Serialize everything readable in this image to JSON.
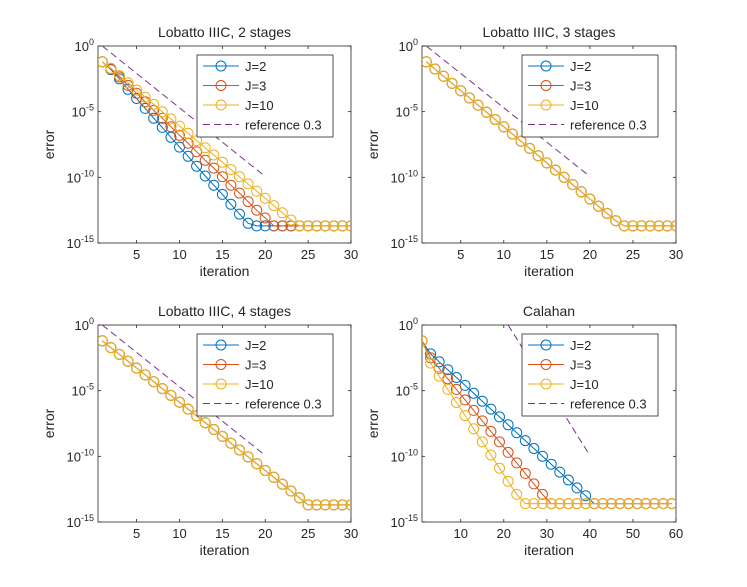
{
  "chart_data": [
    {
      "type": "line",
      "title": "Lobatto IIIC, 2 stages",
      "xlabel": "iteration",
      "ylabel": "error",
      "xlim": [
        0.5,
        30
      ],
      "ylim_exp": [
        -15,
        0
      ],
      "xticks": [
        5,
        10,
        15,
        20,
        25,
        30
      ],
      "yticks": [
        {
          "base": "10",
          "exp": "0",
          "v": 0
        },
        {
          "base": "10",
          "exp": "-5",
          "v": -5
        },
        {
          "base": "10",
          "exp": "-10",
          "v": -10
        },
        {
          "base": "10",
          "exp": "-15",
          "v": -15
        }
      ],
      "legend": [
        "J=2",
        "J=3",
        "J=10",
        "reference 0.3"
      ],
      "legend_position": "top-right",
      "series": [
        {
          "name": "J=2",
          "x0": 1,
          "dx": 1,
          "log10y": [
            -1.2,
            -1.8,
            -2.5,
            -3.3,
            -4.0,
            -4.75,
            -5.5,
            -6.2,
            -6.95,
            -7.7,
            -8.4,
            -9.15,
            -9.9,
            -10.6,
            -11.3,
            -12.05,
            -12.8,
            -13.5,
            -13.7,
            -13.7,
            -13.7,
            -13.7,
            -13.7,
            -13.7,
            -13.7,
            -13.7,
            -13.7,
            -13.7,
            -13.7,
            -13.7
          ]
        },
        {
          "name": "J=3",
          "x0": 1,
          "dx": 1,
          "log10y": [
            -1.2,
            -1.75,
            -2.35,
            -3.0,
            -3.6,
            -4.25,
            -4.9,
            -5.5,
            -6.15,
            -6.8,
            -7.4,
            -8.05,
            -8.7,
            -9.3,
            -9.95,
            -10.6,
            -11.2,
            -11.85,
            -12.5,
            -13.1,
            -13.7,
            -13.7,
            -13.7,
            -13.7,
            -13.7,
            -13.7,
            -13.7,
            -13.7,
            -13.7,
            -13.7
          ]
        },
        {
          "name": "J=10",
          "x0": 1,
          "dx": 1,
          "log10y": [
            -1.2,
            -1.7,
            -2.25,
            -2.8,
            -3.35,
            -3.9,
            -4.45,
            -5.0,
            -5.55,
            -6.1,
            -6.65,
            -7.2,
            -7.75,
            -8.3,
            -8.85,
            -9.4,
            -9.95,
            -10.5,
            -11.05,
            -11.6,
            -12.15,
            -12.7,
            -13.25,
            -13.7,
            -13.7,
            -13.7,
            -13.7,
            -13.7,
            -13.7,
            -13.7
          ]
        },
        {
          "name": "reference 0.3",
          "dashed": true,
          "x0": 1,
          "dx": 1,
          "log10y": [
            0,
            -0.523,
            -1.046,
            -1.569,
            -2.092,
            -2.615,
            -3.138,
            -3.661,
            -4.184,
            -4.707,
            -5.229,
            -5.752,
            -6.275,
            -6.798,
            -7.321,
            -7.844,
            -8.367,
            -8.89,
            -9.413,
            -9.936
          ]
        }
      ]
    },
    {
      "type": "line",
      "title": "Lobatto IIIC, 3 stages",
      "xlabel": "iteration",
      "ylabel": "error",
      "xlim": [
        0.5,
        30
      ],
      "ylim_exp": [
        -15,
        0
      ],
      "xticks": [
        5,
        10,
        15,
        20,
        25,
        30
      ],
      "yticks": [
        {
          "base": "10",
          "exp": "0",
          "v": 0
        },
        {
          "base": "10",
          "exp": "-5",
          "v": -5
        },
        {
          "base": "10",
          "exp": "-10",
          "v": -10
        },
        {
          "base": "10",
          "exp": "-15",
          "v": -15
        }
      ],
      "legend": [
        "J=2",
        "J=3",
        "J=10",
        "reference 0.3"
      ],
      "legend_position": "top-right",
      "series": [
        {
          "name": "J=2",
          "x0": 1,
          "dx": 1,
          "log10y": [
            -1.2,
            -1.75,
            -2.3,
            -2.85,
            -3.4,
            -3.95,
            -4.5,
            -5.05,
            -5.6,
            -6.15,
            -6.7,
            -7.25,
            -7.8,
            -8.35,
            -8.9,
            -9.45,
            -10.0,
            -10.55,
            -11.1,
            -11.65,
            -12.2,
            -12.75,
            -13.3,
            -13.7,
            -13.7,
            -13.7,
            -13.7,
            -13.7,
            -13.7,
            -13.7
          ]
        },
        {
          "name": "J=3",
          "x0": 1,
          "dx": 1,
          "log10y": [
            -1.2,
            -1.75,
            -2.3,
            -2.85,
            -3.4,
            -3.95,
            -4.5,
            -5.05,
            -5.6,
            -6.15,
            -6.7,
            -7.25,
            -7.8,
            -8.35,
            -8.9,
            -9.45,
            -10.0,
            -10.55,
            -11.1,
            -11.65,
            -12.2,
            -12.75,
            -13.3,
            -13.7,
            -13.7,
            -13.7,
            -13.7,
            -13.7,
            -13.7,
            -13.7
          ]
        },
        {
          "name": "J=10",
          "x0": 1,
          "dx": 1,
          "log10y": [
            -1.2,
            -1.75,
            -2.3,
            -2.85,
            -3.4,
            -3.95,
            -4.5,
            -5.05,
            -5.6,
            -6.15,
            -6.7,
            -7.25,
            -7.8,
            -8.35,
            -8.9,
            -9.45,
            -10.0,
            -10.55,
            -11.1,
            -11.65,
            -12.2,
            -12.75,
            -13.3,
            -13.7,
            -13.7,
            -13.7,
            -13.7,
            -13.7,
            -13.7,
            -13.7
          ]
        },
        {
          "name": "reference 0.3",
          "dashed": true,
          "x0": 1,
          "dx": 1,
          "log10y": [
            0,
            -0.523,
            -1.046,
            -1.569,
            -2.092,
            -2.615,
            -3.138,
            -3.661,
            -4.184,
            -4.707,
            -5.229,
            -5.752,
            -6.275,
            -6.798,
            -7.321,
            -7.844,
            -8.367,
            -8.89,
            -9.413,
            -9.936
          ]
        }
      ]
    },
    {
      "type": "line",
      "title": "Lobatto IIIC, 4 stages",
      "xlabel": "iteration",
      "ylabel": "error",
      "xlim": [
        0.5,
        30
      ],
      "ylim_exp": [
        -15,
        0
      ],
      "xticks": [
        5,
        10,
        15,
        20,
        25,
        30
      ],
      "yticks": [
        {
          "base": "10",
          "exp": "0",
          "v": 0
        },
        {
          "base": "10",
          "exp": "-5",
          "v": -5
        },
        {
          "base": "10",
          "exp": "-10",
          "v": -10
        },
        {
          "base": "10",
          "exp": "-15",
          "v": -15
        }
      ],
      "legend": [
        "J=2",
        "J=3",
        "J=10",
        "reference 0.3"
      ],
      "legend_position": "top-right",
      "series": [
        {
          "name": "J=2",
          "x0": 1,
          "dx": 1,
          "log10y": [
            -1.2,
            -1.72,
            -2.24,
            -2.76,
            -3.28,
            -3.8,
            -4.32,
            -4.84,
            -5.36,
            -5.88,
            -6.4,
            -6.92,
            -7.44,
            -7.96,
            -8.48,
            -9.0,
            -9.52,
            -10.04,
            -10.56,
            -11.08,
            -11.6,
            -12.12,
            -12.64,
            -13.16,
            -13.7,
            -13.7,
            -13.7,
            -13.7,
            -13.7,
            -13.7
          ]
        },
        {
          "name": "J=3",
          "x0": 1,
          "dx": 1,
          "log10y": [
            -1.2,
            -1.72,
            -2.24,
            -2.76,
            -3.28,
            -3.8,
            -4.32,
            -4.84,
            -5.36,
            -5.88,
            -6.4,
            -6.92,
            -7.44,
            -7.96,
            -8.48,
            -9.0,
            -9.52,
            -10.04,
            -10.56,
            -11.08,
            -11.6,
            -12.12,
            -12.64,
            -13.16,
            -13.7,
            -13.7,
            -13.7,
            -13.7,
            -13.7,
            -13.7
          ]
        },
        {
          "name": "J=10",
          "x0": 1,
          "dx": 1,
          "log10y": [
            -1.2,
            -1.72,
            -2.24,
            -2.76,
            -3.28,
            -3.8,
            -4.32,
            -4.84,
            -5.36,
            -5.88,
            -6.4,
            -6.92,
            -7.44,
            -7.96,
            -8.48,
            -9.0,
            -9.52,
            -10.04,
            -10.56,
            -11.08,
            -11.6,
            -12.12,
            -12.64,
            -13.16,
            -13.7,
            -13.7,
            -13.7,
            -13.7,
            -13.7,
            -13.7
          ]
        },
        {
          "name": "reference 0.3",
          "dashed": true,
          "x0": 1,
          "dx": 1,
          "log10y": [
            0,
            -0.523,
            -1.046,
            -1.569,
            -2.092,
            -2.615,
            -3.138,
            -3.661,
            -4.184,
            -4.707,
            -5.229,
            -5.752,
            -6.275,
            -6.798,
            -7.321,
            -7.844,
            -8.367,
            -8.89,
            -9.413,
            -9.936
          ]
        }
      ]
    },
    {
      "type": "line",
      "title": "Calahan",
      "xlabel": "iteration",
      "ylabel": "error",
      "xlim": [
        1,
        60
      ],
      "ylim_exp": [
        -15,
        0
      ],
      "xticks": [
        10,
        20,
        30,
        40,
        50,
        60
      ],
      "yticks": [
        {
          "base": "10",
          "exp": "0",
          "v": 0
        },
        {
          "base": "10",
          "exp": "-5",
          "v": -5
        },
        {
          "base": "10",
          "exp": "-10",
          "v": -10
        },
        {
          "base": "10",
          "exp": "-15",
          "v": -15
        }
      ],
      "legend": [
        "J=2",
        "J=3",
        "J=10",
        "reference 0.3"
      ],
      "legend_position": "top-right",
      "series": [
        {
          "name": "J=2",
          "x0": 1,
          "dx": 2,
          "log10y": [
            -1.2,
            -2.2,
            -2.8,
            -3.4,
            -4.0,
            -4.6,
            -5.2,
            -5.8,
            -6.4,
            -7.0,
            -7.6,
            -8.2,
            -8.8,
            -9.4,
            -10.0,
            -10.6,
            -11.2,
            -11.8,
            -12.4,
            -13.0,
            -13.6,
            -13.6,
            -13.6,
            -13.6,
            -13.6,
            -13.6,
            -13.6,
            -13.6,
            -13.6,
            -13.6
          ]
        },
        {
          "name": "J=3",
          "x0": 1,
          "dx": 2,
          "log10y": [
            -1.2,
            -2.5,
            -3.3,
            -4.1,
            -4.9,
            -5.7,
            -6.5,
            -7.3,
            -8.1,
            -8.9,
            -9.7,
            -10.5,
            -11.3,
            -12.1,
            -12.9,
            -13.6,
            -13.6,
            -13.6,
            -13.6,
            -13.6,
            -13.6,
            -13.6,
            -13.6,
            -13.6,
            -13.6,
            -13.6,
            -13.6,
            -13.6,
            -13.6,
            -13.6
          ]
        },
        {
          "name": "J=10",
          "x0": 1,
          "dx": 2,
          "log10y": [
            -1.2,
            -2.9,
            -3.9,
            -4.9,
            -5.9,
            -6.9,
            -7.9,
            -8.9,
            -9.9,
            -10.9,
            -11.9,
            -12.9,
            -13.6,
            -13.6,
            -13.6,
            -13.6,
            -13.6,
            -13.6,
            -13.6,
            -13.6,
            -13.6,
            -13.6,
            -13.6,
            -13.6,
            -13.6,
            -13.6,
            -13.6,
            -13.6,
            -13.6,
            -13.6
          ]
        },
        {
          "name": "reference 0.3",
          "dashed": true,
          "x0": 21,
          "dx": 1,
          "log10y": [
            0,
            -0.523,
            -1.046,
            -1.569,
            -2.092,
            -2.615,
            -3.138,
            -3.661,
            -4.184,
            -4.707,
            -5.229,
            -5.752,
            -6.275,
            -6.798,
            -7.321,
            -7.844,
            -8.367,
            -8.89,
            -9.413,
            -9.936
          ]
        }
      ]
    }
  ],
  "colors": {
    "J=2": "#0072bd",
    "J=3": "#d95319",
    "J=10": "#edb120",
    "reference 0.3": "#7e2f8e",
    "axis": "#262626"
  }
}
